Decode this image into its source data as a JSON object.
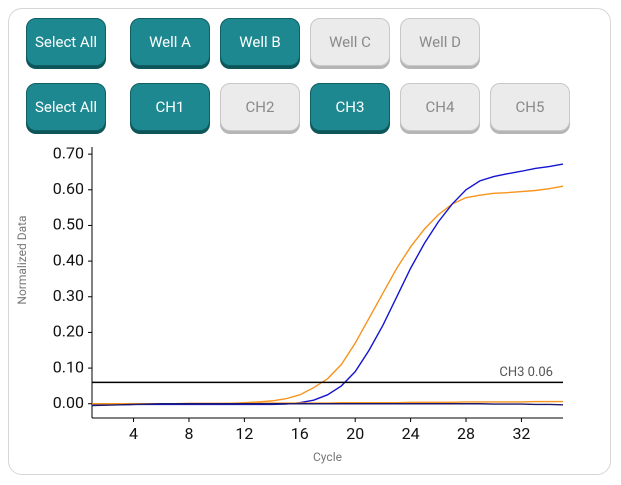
{
  "toolbar": {
    "rows": [
      [
        {
          "label": "Select All",
          "active": true
        },
        {
          "label": "Well A",
          "active": true
        },
        {
          "label": "Well B",
          "active": true
        },
        {
          "label": "Well C",
          "active": false
        },
        {
          "label": "Well D",
          "active": false
        }
      ],
      [
        {
          "label": "Select All",
          "active": true
        },
        {
          "label": "CH1",
          "active": true
        },
        {
          "label": "CH2",
          "active": false
        },
        {
          "label": "CH3",
          "active": true
        },
        {
          "label": "CH4",
          "active": false
        },
        {
          "label": "CH5",
          "active": false
        }
      ]
    ]
  },
  "chart_data": {
    "type": "line",
    "x_label": "Cycle",
    "y_label": "Normalized Data",
    "x": [
      1,
      2,
      3,
      4,
      5,
      6,
      7,
      8,
      9,
      10,
      11,
      12,
      13,
      14,
      15,
      16,
      17,
      18,
      19,
      20,
      21,
      22,
      23,
      24,
      25,
      26,
      27,
      28,
      29,
      30,
      31,
      32,
      33,
      34,
      35
    ],
    "series": [
      {
        "color": "#f7941d",
        "values": [
          0,
          0,
          0,
          0,
          0,
          0,
          0,
          0,
          0,
          0,
          0.001,
          0.003,
          0.005,
          0.008,
          0.014,
          0.025,
          0.045,
          0.07,
          0.11,
          0.17,
          0.24,
          0.31,
          0.38,
          0.44,
          0.49,
          0.53,
          0.56,
          0.578,
          0.585,
          0.59,
          0.592,
          0.595,
          0.598,
          0.603,
          0.61
        ]
      },
      {
        "color": "#1414d2",
        "values": [
          -0.003,
          -0.003,
          -0.003,
          -0.002,
          -0.002,
          -0.002,
          -0.002,
          -0.002,
          -0.002,
          -0.002,
          -0.002,
          -0.002,
          -0.002,
          -0.002,
          -0.001,
          0.003,
          0.01,
          0.025,
          0.05,
          0.09,
          0.15,
          0.22,
          0.3,
          0.38,
          0.45,
          0.51,
          0.56,
          0.6,
          0.625,
          0.637,
          0.645,
          0.652,
          0.66,
          0.665,
          0.672
        ]
      },
      {
        "color": "#f7941d",
        "values": [
          -0.004,
          -0.003,
          -0.002,
          -0.001,
          0,
          0,
          0,
          0.001,
          0.001,
          0.001,
          0.001,
          0.001,
          0.001,
          0.002,
          0.002,
          0.002,
          0.002,
          0.002,
          0.003,
          0.003,
          0.003,
          0.003,
          0.003,
          0.004,
          0.004,
          0.004,
          0.004,
          0.005,
          0.005,
          0.005,
          0.005,
          0.005,
          0.006,
          0.006,
          0.006
        ]
      },
      {
        "color": "#1a1a6e",
        "values": [
          -0.005,
          -0.004,
          -0.003,
          -0.002,
          -0.001,
          0,
          0,
          0,
          0,
          0,
          0,
          0,
          0,
          0,
          0,
          0,
          0,
          0,
          0,
          0,
          0,
          0,
          0,
          0,
          0,
          0,
          0,
          0,
          0,
          -0.001,
          -0.001,
          -0.001,
          -0.002,
          -0.002,
          -0.003
        ]
      }
    ],
    "threshold": {
      "value": 0.06,
      "label": "CH3 0.06",
      "color": "#000000"
    },
    "xlim": [
      1,
      35
    ],
    "ylim": [
      -0.04,
      0.72
    ],
    "xticks": [
      4,
      8,
      12,
      16,
      20,
      24,
      28,
      32
    ],
    "yticks": [
      {
        "value": 0,
        "label": "0.00"
      },
      {
        "value": 0.1,
        "label": "0.10"
      },
      {
        "value": 0.2,
        "label": "0.20"
      },
      {
        "value": 0.3,
        "label": "0.30"
      },
      {
        "value": 0.4,
        "label": "0.40"
      },
      {
        "value": 0.5,
        "label": "0.50"
      },
      {
        "value": 0.6,
        "label": "0.60"
      },
      {
        "value": 0.7,
        "label": "0.70"
      }
    ]
  }
}
